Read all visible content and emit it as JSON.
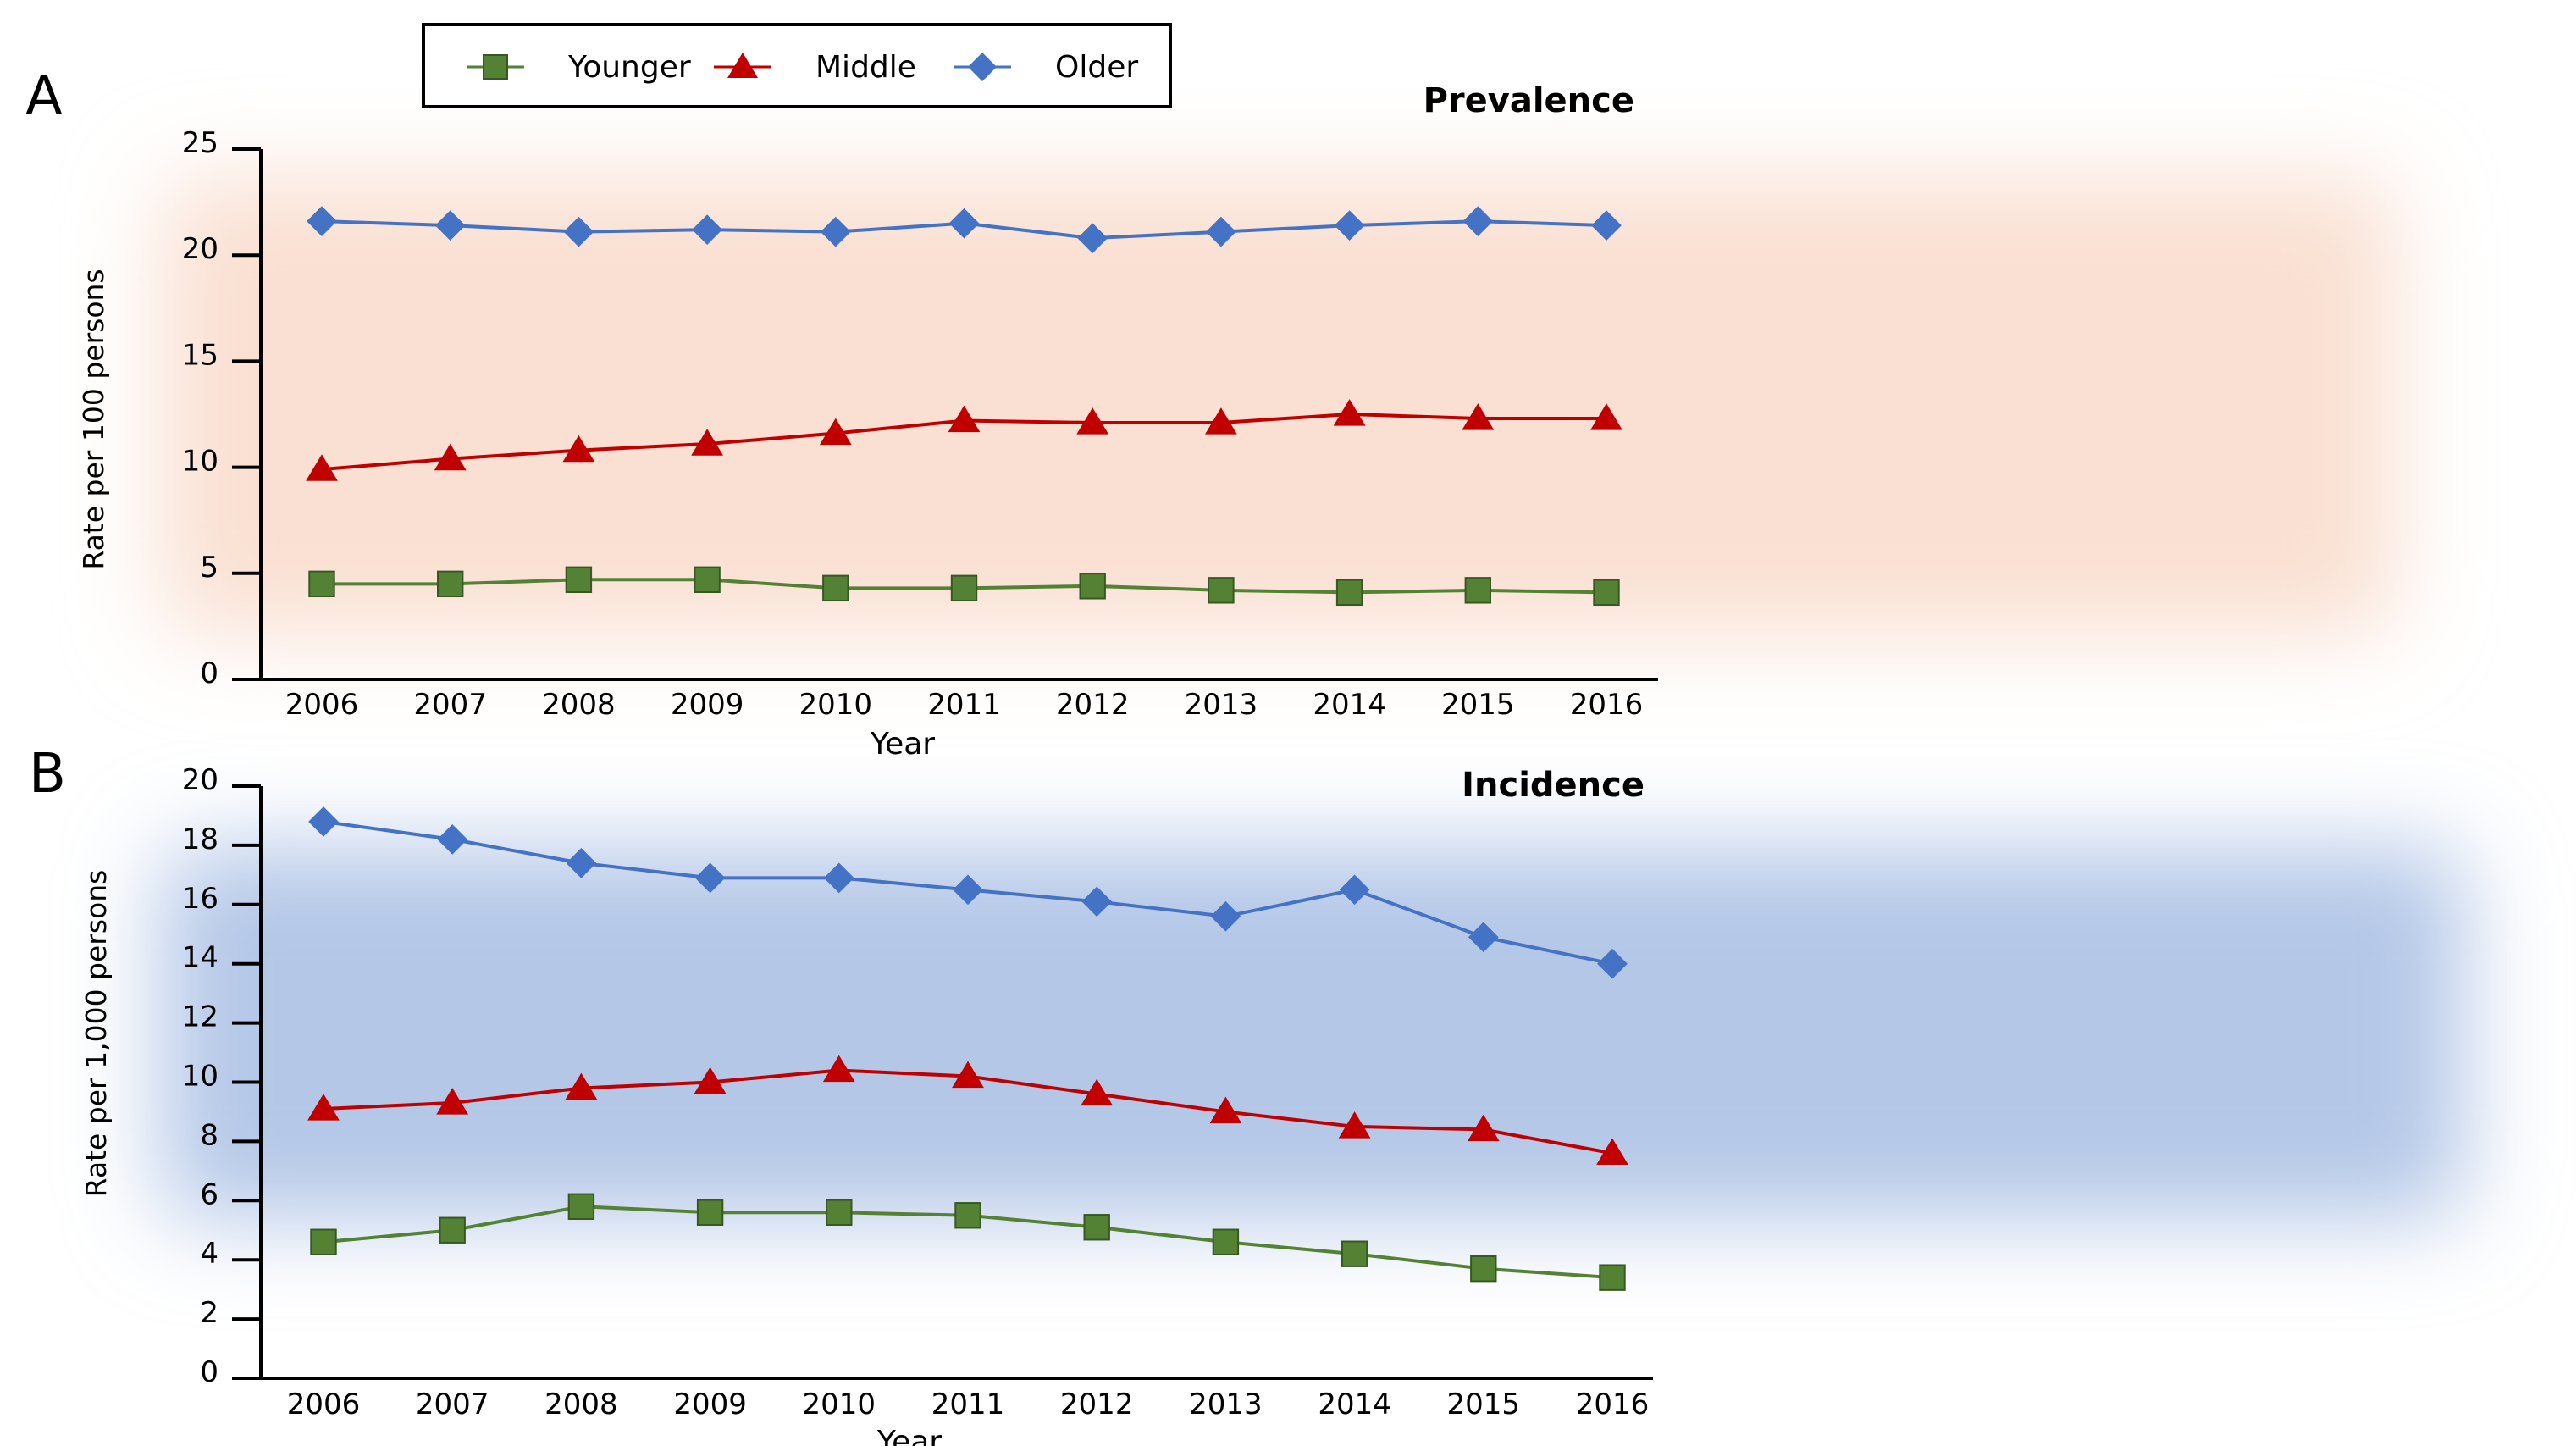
{
  "legend": {
    "items": [
      {
        "label": "Younger",
        "color": "#548235",
        "marker": "square"
      },
      {
        "label": "Middle",
        "color": "#c00000",
        "marker": "triangle"
      },
      {
        "label": "Older",
        "color": "#4472c4",
        "marker": "diamond"
      }
    ]
  },
  "colors": {
    "panel_a_background": "#f9e0d2",
    "panel_b_background": "#b4c7e7",
    "axis": "#000000"
  },
  "chart_data": [
    {
      "panel_label": "A",
      "type": "line",
      "title": "Prevalence",
      "xlabel": "Year",
      "ylabel": "Rate per 100 persons",
      "categories": [
        "2006",
        "2007",
        "2008",
        "2009",
        "2010",
        "2011",
        "2012",
        "2013",
        "2014",
        "2015",
        "2016"
      ],
      "ylim": [
        0,
        25
      ],
      "yticks": [
        "0",
        "5",
        "10",
        "15",
        "20",
        "25"
      ],
      "grid": false,
      "legend_position": "top-center",
      "series": [
        {
          "name": "Younger",
          "color": "#548235",
          "marker": "square",
          "values": [
            4.5,
            4.5,
            4.7,
            4.7,
            4.3,
            4.3,
            4.4,
            4.2,
            4.1,
            4.2,
            4.1
          ]
        },
        {
          "name": "Middle",
          "color": "#c00000",
          "marker": "triangle",
          "values": [
            9.9,
            10.4,
            10.8,
            11.1,
            11.6,
            12.2,
            12.1,
            12.1,
            12.5,
            12.3,
            12.3
          ]
        },
        {
          "name": "Older",
          "color": "#4472c4",
          "marker": "diamond",
          "values": [
            21.6,
            21.4,
            21.1,
            21.2,
            21.1,
            21.5,
            20.8,
            21.1,
            21.4,
            21.6,
            21.4
          ]
        }
      ]
    },
    {
      "panel_label": "B",
      "type": "line",
      "title": "Incidence",
      "xlabel": "Year",
      "ylabel": "Rate per 1,000 persons",
      "categories": [
        "2006",
        "2007",
        "2008",
        "2009",
        "2010",
        "2011",
        "2012",
        "2013",
        "2014",
        "2015",
        "2016"
      ],
      "ylim": [
        0,
        20
      ],
      "yticks": [
        "0",
        "2",
        "4",
        "6",
        "8",
        "10",
        "12",
        "14",
        "16",
        "18",
        "20"
      ],
      "grid": false,
      "series": [
        {
          "name": "Younger",
          "color": "#548235",
          "marker": "square",
          "values": [
            4.6,
            5.0,
            5.8,
            5.6,
            5.6,
            5.5,
            5.1,
            4.6,
            4.2,
            3.7,
            3.4
          ]
        },
        {
          "name": "Middle",
          "color": "#c00000",
          "marker": "triangle",
          "values": [
            9.1,
            9.3,
            9.8,
            10.0,
            10.4,
            10.2,
            9.6,
            9.0,
            8.5,
            8.4,
            7.6
          ]
        },
        {
          "name": "Older",
          "color": "#4472c4",
          "marker": "diamond",
          "values": [
            18.8,
            18.2,
            17.4,
            16.9,
            16.9,
            16.5,
            16.1,
            15.6,
            16.5,
            14.9,
            14.0
          ]
        }
      ]
    }
  ]
}
